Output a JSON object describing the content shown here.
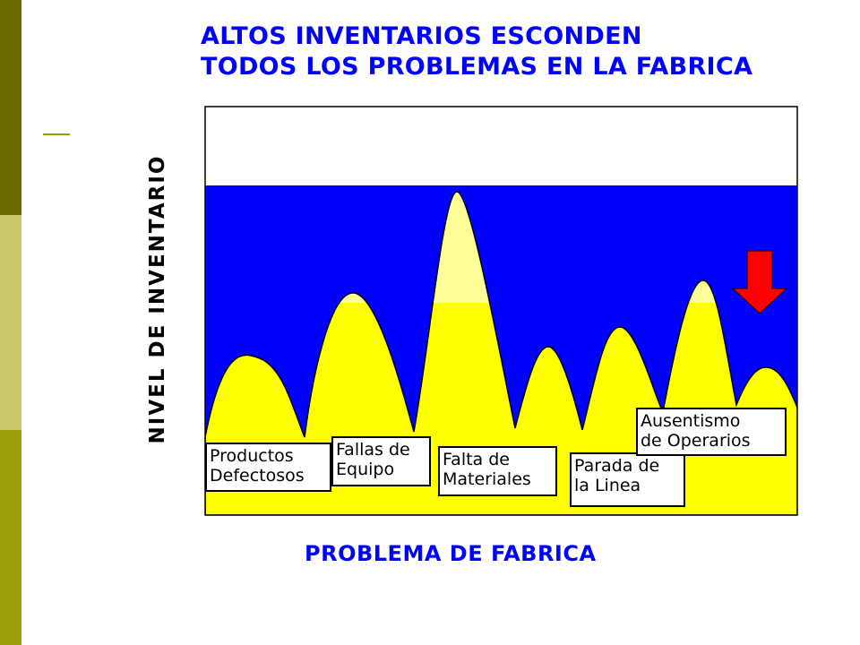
{
  "colors": {
    "band_dark": "#6b6b00",
    "band_light": "#c8c86a",
    "band_mid": "#9e9e0a",
    "accent_line": "#9e9e0a",
    "title": "#0000ff",
    "water": "#0000ff",
    "rocks": "#ffff00",
    "rock_tips": "#ffff99",
    "arrow": "#ff0000",
    "x_label": "#0000ff"
  },
  "title": {
    "line1": "ALTOS INVENTARIOS ESCONDEN",
    "line2": "TODOS LOS PROBLEMAS EN LA FABRICA"
  },
  "y_axis_label": "NIVEL DE INVENTARIO",
  "x_axis_label": "PROBLEMA DE FABRICA",
  "arrow": {
    "icon": "down-arrow-icon",
    "meaning": "inventory level decreasing"
  },
  "problems": [
    {
      "name": "problem-productos-defectosos",
      "line1": "Productos",
      "line2": "Defectosos"
    },
    {
      "name": "problem-fallas-de-equipo",
      "line1": "Fallas de",
      "line2": "Equipo"
    },
    {
      "name": "problem-falta-de-materiales",
      "line1": "Falta de",
      "line2": "Materiales"
    },
    {
      "name": "problem-parada-de-la-linea",
      "line1": "Parada de",
      "line2": "la Linea"
    },
    {
      "name": "problem-ausentismo-de-operarios",
      "line1": "Ausentismo",
      "line2": "de Operarios"
    }
  ]
}
